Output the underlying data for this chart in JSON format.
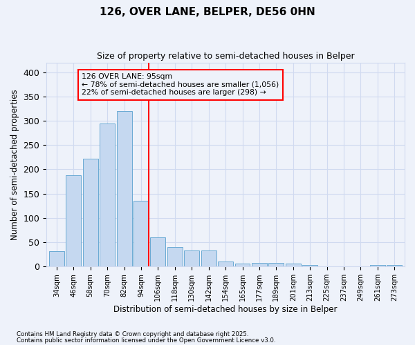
{
  "title": "126, OVER LANE, BELPER, DE56 0HN",
  "subtitle": "Size of property relative to semi-detached houses in Belper",
  "xlabel": "Distribution of semi-detached houses by size in Belper",
  "ylabel": "Number of semi-detached properties",
  "categories": [
    "34sqm",
    "46sqm",
    "58sqm",
    "70sqm",
    "82sqm",
    "94sqm",
    "106sqm",
    "118sqm",
    "130sqm",
    "142sqm",
    "154sqm",
    "165sqm",
    "177sqm",
    "189sqm",
    "201sqm",
    "213sqm",
    "225sqm",
    "237sqm",
    "249sqm",
    "261sqm",
    "273sqm"
  ],
  "values": [
    32,
    188,
    222,
    295,
    320,
    135,
    60,
    40,
    33,
    33,
    10,
    6,
    8,
    8,
    6,
    3,
    1,
    1,
    1,
    4,
    3
  ],
  "bar_color": "#c5d8f0",
  "bar_edge_color": "#6aaad4",
  "vline_x_idx": 5,
  "vline_color": "red",
  "annotation_text": "126 OVER LANE: 95sqm\n← 78% of semi-detached houses are smaller (1,056)\n22% of semi-detached houses are larger (298) →",
  "annotation_box_color": "red",
  "ylim": [
    0,
    420
  ],
  "yticks": [
    0,
    50,
    100,
    150,
    200,
    250,
    300,
    350,
    400
  ],
  "footnote1": "Contains HM Land Registry data © Crown copyright and database right 2025.",
  "footnote2": "Contains public sector information licensed under the Open Government Licence v3.0.",
  "bg_color": "#eef2fa",
  "grid_color": "#d0daf0"
}
